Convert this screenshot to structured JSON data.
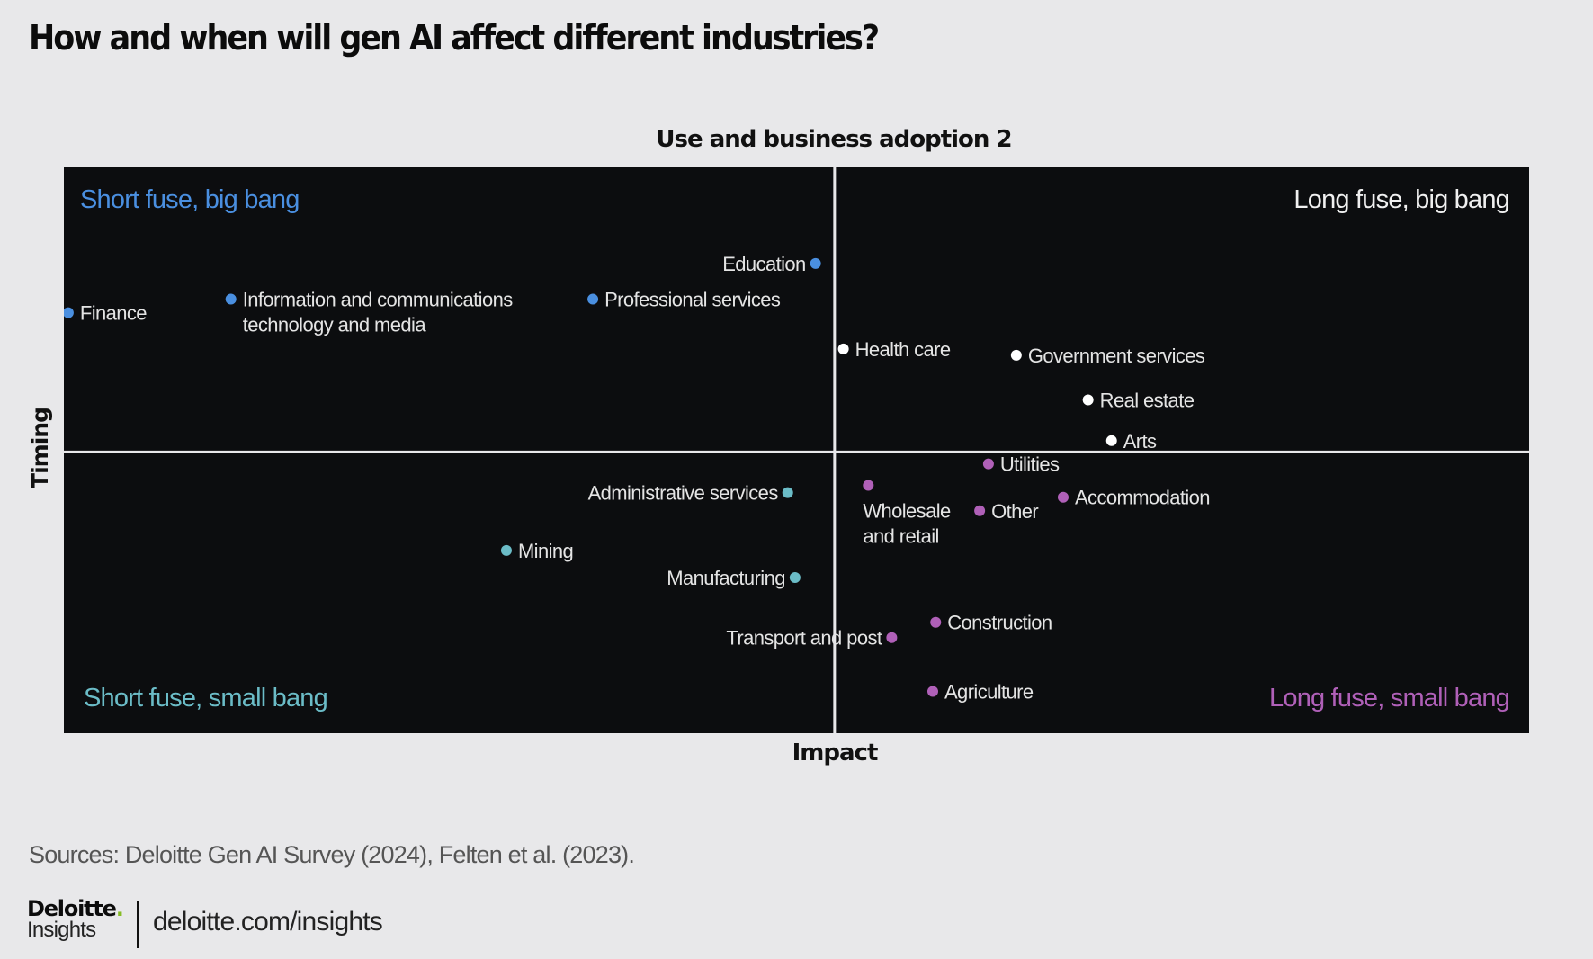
{
  "title": "How and when will gen AI affect different industries?",
  "source": "Sources: Deloitte Gen AI Survey (2024), Felten et al. (2023).",
  "branding": {
    "logo_main": "Deloitte",
    "logo_dot": ".",
    "logo_sub": "Insights",
    "url": "deloitte.com/insights"
  },
  "colors": {
    "background": "#e8e8ea",
    "plot_background": "#0c0d0f",
    "short_fuse_big_bang": "#4a8fe0",
    "long_fuse_big_bang": "#ffffff",
    "short_fuse_small_bang": "#6bbcc7",
    "long_fuse_small_bang": "#b060b8"
  },
  "chart_data": {
    "type": "scatter",
    "title": "How and when will gen AI affect different industries?",
    "top_label": "Use and business adoption 2",
    "xlabel": "Impact",
    "ylabel": "Timing",
    "xlim": [
      0,
      1
    ],
    "ylim": [
      0,
      1
    ],
    "grid": false,
    "x_divider": 0.526,
    "y_divider": 0.497,
    "quadrants": [
      {
        "key": "short_fuse_big_bang",
        "label": "Short fuse, big bang",
        "position": "top-left"
      },
      {
        "key": "long_fuse_big_bang",
        "label": "Long fuse, big bang",
        "position": "top-right"
      },
      {
        "key": "short_fuse_small_bang",
        "label": "Short fuse, small bang",
        "position": "bottom-left"
      },
      {
        "key": "long_fuse_small_bang",
        "label": "Long fuse, small bang",
        "position": "bottom-right"
      }
    ],
    "points": [
      {
        "name": "Finance",
        "lines": [
          "Finance"
        ],
        "x": 0.003,
        "y": 0.743,
        "group": "short_fuse_big_bang",
        "label_side": "right"
      },
      {
        "name": "Information and communications technology and media",
        "lines": [
          "Information and communications",
          "technology and media"
        ],
        "x": 0.114,
        "y": 0.767,
        "group": "short_fuse_big_bang",
        "label_side": "right"
      },
      {
        "name": "Professional services",
        "lines": [
          "Professional services"
        ],
        "x": 0.361,
        "y": 0.767,
        "group": "short_fuse_big_bang",
        "label_side": "right"
      },
      {
        "name": "Education",
        "lines": [
          "Education"
        ],
        "x": 0.513,
        "y": 0.83,
        "group": "short_fuse_big_bang",
        "label_side": "left"
      },
      {
        "name": "Health care",
        "lines": [
          "Health care"
        ],
        "x": 0.532,
        "y": 0.679,
        "group": "long_fuse_big_bang",
        "label_side": "right"
      },
      {
        "name": "Government services",
        "lines": [
          "Government services"
        ],
        "x": 0.65,
        "y": 0.668,
        "group": "long_fuse_big_bang",
        "label_side": "right"
      },
      {
        "name": "Real estate",
        "lines": [
          "Real estate"
        ],
        "x": 0.699,
        "y": 0.589,
        "group": "long_fuse_big_bang",
        "label_side": "right"
      },
      {
        "name": "Arts",
        "lines": [
          "Arts"
        ],
        "x": 0.715,
        "y": 0.517,
        "group": "long_fuse_big_bang",
        "label_side": "right"
      },
      {
        "name": "Utilities",
        "lines": [
          "Utilities"
        ],
        "x": 0.631,
        "y": 0.476,
        "group": "long_fuse_small_bang",
        "label_side": "right"
      },
      {
        "name": "Administrative services",
        "lines": [
          "Administrative services"
        ],
        "x": 0.494,
        "y": 0.425,
        "group": "short_fuse_small_bang",
        "label_side": "left"
      },
      {
        "name": "Wholesale and retail",
        "lines": [
          "Wholesale",
          "and retail"
        ],
        "x": 0.549,
        "y": 0.438,
        "group": "long_fuse_small_bang",
        "label_side": "below"
      },
      {
        "name": "Other",
        "lines": [
          "Other"
        ],
        "x": 0.625,
        "y": 0.393,
        "group": "long_fuse_small_bang",
        "label_side": "right"
      },
      {
        "name": "Accommodation",
        "lines": [
          "Accommodation"
        ],
        "x": 0.682,
        "y": 0.417,
        "group": "long_fuse_small_bang",
        "label_side": "right"
      },
      {
        "name": "Mining",
        "lines": [
          "Mining"
        ],
        "x": 0.302,
        "y": 0.323,
        "group": "short_fuse_small_bang",
        "label_side": "right"
      },
      {
        "name": "Manufacturing",
        "lines": [
          "Manufacturing"
        ],
        "x": 0.499,
        "y": 0.275,
        "group": "short_fuse_small_bang",
        "label_side": "left"
      },
      {
        "name": "Construction",
        "lines": [
          "Construction"
        ],
        "x": 0.595,
        "y": 0.196,
        "group": "long_fuse_small_bang",
        "label_side": "right"
      },
      {
        "name": "Transport and post",
        "lines": [
          "Transport and post"
        ],
        "x": 0.565,
        "y": 0.169,
        "group": "long_fuse_small_bang",
        "label_side": "left"
      },
      {
        "name": "Agriculture",
        "lines": [
          "Agriculture"
        ],
        "x": 0.593,
        "y": 0.074,
        "group": "long_fuse_small_bang",
        "label_side": "right"
      }
    ]
  }
}
